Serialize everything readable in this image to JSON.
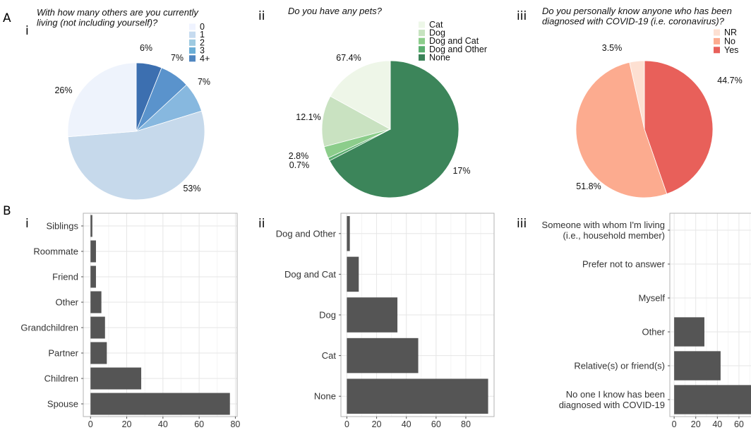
{
  "panel_labels": {
    "A": "A",
    "B": "B"
  },
  "chart_data": [
    {
      "type": "pie",
      "panel": "A",
      "sublabel": "i",
      "title_lines": [
        "With how many others are you currently",
        "living (not including yourself)?"
      ],
      "legend": [
        "0",
        "1",
        "2",
        "3",
        "4+"
      ],
      "colors": [
        "#eff3ff",
        "#c6dbef",
        "#9ecae1",
        "#6baed6",
        "#4f86c0"
      ],
      "slices": [
        {
          "name": "4+",
          "value": 6,
          "label": "6%",
          "color": "#3c6fb0"
        },
        {
          "name": "3",
          "value": 7,
          "label": "7%",
          "color": "#5a93cc"
        },
        {
          "name": "2",
          "value": 7,
          "label": "7%",
          "color": "#87b8df"
        },
        {
          "name": "1",
          "value": 53,
          "label": "53%",
          "color": "#c6d9eb"
        },
        {
          "name": "0",
          "value": 26,
          "label": "26%",
          "color": "#eef3fc"
        }
      ]
    },
    {
      "type": "pie",
      "panel": "A",
      "sublabel": "ii",
      "title_lines": [
        "Do you have any pets?"
      ],
      "legend": [
        "Cat",
        "Dog",
        "Dog and Cat",
        "Dog and Other",
        "None"
      ],
      "colors": [
        "#edf7e8",
        "#c7e3c0",
        "#8ccd8b",
        "#5aae6f",
        "#3b8258"
      ],
      "slices": [
        {
          "name": "None",
          "value": 67.4,
          "label": "67.4%",
          "color": "#3c855a"
        },
        {
          "name": "Dog and Other",
          "value": 0.7,
          "label": "0.7%",
          "color": "#5aae6f"
        },
        {
          "name": "Dog and Cat",
          "value": 2.8,
          "label": "2.8%",
          "color": "#8ccd8b"
        },
        {
          "name": "Dog",
          "value": 12.1,
          "label": "12.1%",
          "color": "#c9e2c1"
        },
        {
          "name": "Cat",
          "value": 17,
          "label": "17%",
          "color": "#eef6e8"
        }
      ]
    },
    {
      "type": "pie",
      "panel": "A",
      "sublabel": "iii",
      "title_lines": [
        "Do you personally know anyone who has been",
        "diagnosed with COVID-19 (i.e. coronavirus)?"
      ],
      "legend": [
        "NR",
        "No",
        "Yes"
      ],
      "colors": [
        "#fde0d2",
        "#fcab8f",
        "#e8605a"
      ],
      "slices": [
        {
          "name": "Yes",
          "value": 44.7,
          "label": "44.7%",
          "color": "#e8605a"
        },
        {
          "name": "No",
          "value": 51.8,
          "label": "51.8%",
          "color": "#fcab8f"
        },
        {
          "name": "NR",
          "value": 3.5,
          "label": "3.5%",
          "color": "#fde0d2"
        }
      ]
    },
    {
      "type": "bar",
      "orientation": "horizontal",
      "panel": "B",
      "sublabel": "i",
      "categories": [
        "Siblings",
        "Roommate",
        "Friend",
        "Other",
        "Grandchildren",
        "Partner",
        "Children",
        "Spouse"
      ],
      "values": [
        1,
        3,
        3,
        6,
        8,
        9,
        28,
        77
      ],
      "xlim": [
        -4,
        81
      ],
      "xticks": [
        "0",
        "20",
        "40",
        "60",
        "80"
      ]
    },
    {
      "type": "bar",
      "orientation": "horizontal",
      "panel": "B",
      "sublabel": "ii",
      "categories": [
        "Dog and Other",
        "Dog and Cat",
        "Dog",
        "Cat",
        "None"
      ],
      "values": [
        2,
        8,
        34,
        48,
        95
      ],
      "xlim": [
        -4,
        99
      ],
      "xticks": [
        "0",
        "20",
        "40",
        "60",
        "80"
      ]
    },
    {
      "type": "bar",
      "orientation": "horizontal",
      "panel": "B",
      "sublabel": "iii",
      "categories": [
        "Someone with whom I'm living\n(i.e., household member)",
        "Prefer not to answer",
        "Myself",
        "Other",
        "Relative(s) or friend(s)",
        "No one I know has been\ndiagnosed with COVID-19"
      ],
      "values": [
        0,
        0,
        0,
        28,
        43,
        75
      ],
      "xlim": [
        -4,
        79
      ],
      "xticks": [
        "0",
        "20",
        "40",
        "60"
      ]
    }
  ]
}
